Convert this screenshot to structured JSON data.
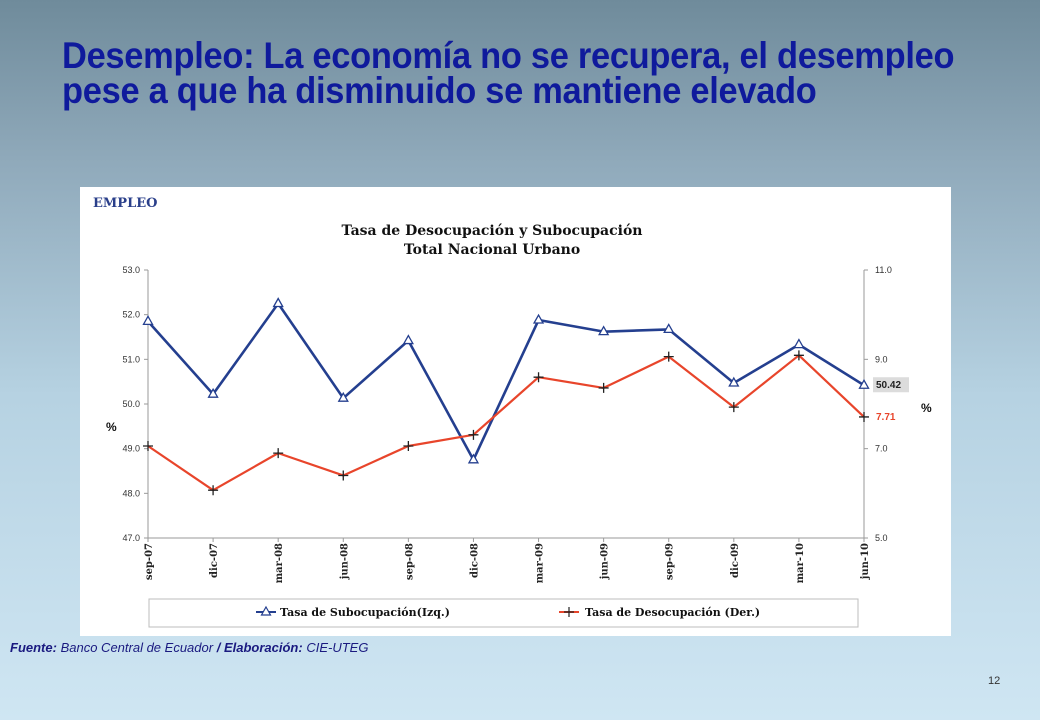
{
  "slide": {
    "title": "Desempleo: La economía no se recupera, el desempleo pese a que ha disminuido se mantiene elevado",
    "source_label": "Fuente:",
    "source_value": "Banco Central de Ecuador",
    "separator": "/",
    "elab_label": "Elaboración:",
    "elab_value": "CIE-UTEG",
    "page_number": "12"
  },
  "chart_data": {
    "type": "line",
    "section_label": "EMPLEO",
    "title": "Tasa de Desocupación y Subocupación",
    "subtitle": "Total Nacional Urbano",
    "categories": [
      "sep-07",
      "dic-07",
      "mar-08",
      "jun-08",
      "sep-08",
      "dic-08",
      "mar-09",
      "jun-09",
      "sep-09",
      "dic-09",
      "mar-10",
      "jun-10"
    ],
    "left_axis": {
      "unit": "%",
      "ylim": [
        47.0,
        53.0
      ],
      "ticks": [
        "47.0",
        "48.0",
        "49.0",
        "50.0",
        "51.0",
        "52.0",
        "53.0"
      ]
    },
    "right_axis": {
      "unit": "%",
      "ylim": [
        5.0,
        11.0
      ],
      "ticks": [
        "5.0",
        "7.0",
        "9.0",
        "11.0"
      ]
    },
    "grid": false,
    "legend_position": "bottom",
    "series": [
      {
        "name": "Tasa de Subocupación(Izq.)",
        "axis": "left",
        "color": "#243f8f",
        "marker": "triangle",
        "values": [
          51.85,
          50.22,
          52.25,
          50.13,
          51.42,
          48.75,
          51.88,
          51.62,
          51.67,
          50.47,
          51.33,
          50.42
        ],
        "end_label": "50.42"
      },
      {
        "name": "Tasa de Desocupación (Der.)",
        "axis": "right",
        "color": "#e8452b",
        "marker": "plus",
        "values": [
          7.06,
          6.07,
          6.9,
          6.4,
          7.06,
          7.31,
          8.6,
          8.36,
          9.06,
          7.93,
          9.09,
          7.71
        ],
        "end_label": "7.71"
      }
    ]
  }
}
